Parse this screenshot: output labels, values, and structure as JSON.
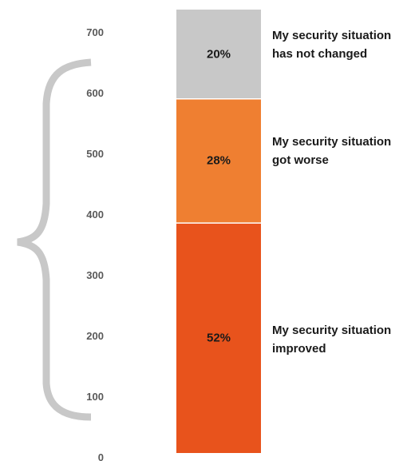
{
  "chart_data": {
    "type": "bar",
    "stacked": true,
    "yticks": [
      "0",
      "100",
      "200",
      "300",
      "400",
      "500",
      "600",
      "700"
    ],
    "ylim": [
      0,
      700
    ],
    "grid": false,
    "segments": [
      {
        "label": "My security situation improved",
        "share": 52,
        "value_label": "52%",
        "color": "#e8531c"
      },
      {
        "label": "My security situation got worse",
        "share": 28,
        "value_label": "28%",
        "color": "#ef7f31"
      },
      {
        "label": "My security situation has not changed",
        "share": 20,
        "value_label": "20%",
        "color": "#c8c8c8"
      }
    ],
    "legend_position": "right",
    "bracket_color": "#c8c8c8"
  }
}
